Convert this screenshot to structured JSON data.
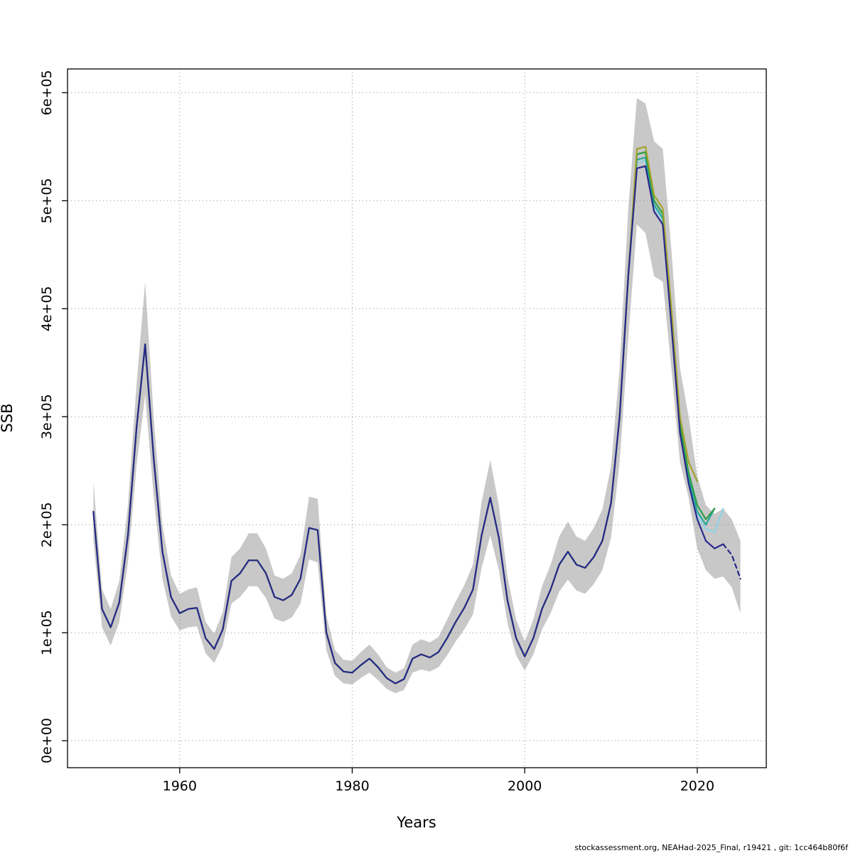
{
  "footer": {
    "source_note": "stockassessment.org, NEAHad-2025_Final, r19421 , git: 1cc464b80f6f"
  },
  "chart_data": {
    "type": "line",
    "title": "",
    "xlabel": "Years",
    "ylabel": "SSB",
    "xlim": [
      1947,
      2028
    ],
    "ylim": [
      -25000,
      622000
    ],
    "grid": true,
    "legend": "none",
    "x_ticks": [
      1960,
      1980,
      2000,
      2020
    ],
    "y_ticks": [
      0,
      100000,
      200000,
      300000,
      400000,
      500000,
      600000
    ],
    "y_tick_labels": [
      "0e+00",
      "1e+05",
      "2e+05",
      "3e+05",
      "4e+05",
      "5e+05",
      "6e+05"
    ],
    "colors": {
      "band": "#c8c8c8",
      "grid": "#8f8f8f",
      "frame": "#000000"
    },
    "shared_history": {
      "comment": "All assessment runs overlap for 1950-2012; annual SSB values",
      "start_year": 1950,
      "end_year": 2012,
      "values": [
        212000,
        122000,
        105000,
        128000,
        190000,
        290000,
        367000,
        260000,
        175000,
        133000,
        118000,
        122000,
        123000,
        95000,
        85000,
        103000,
        148000,
        155000,
        167000,
        167000,
        155000,
        133000,
        130000,
        135000,
        150000,
        197000,
        195000,
        100000,
        72000,
        64000,
        63000,
        70000,
        76000,
        68000,
        58000,
        53000,
        57000,
        76000,
        80000,
        77000,
        82000,
        95000,
        110000,
        123000,
        140000,
        190000,
        225000,
        188000,
        130000,
        95000,
        78000,
        95000,
        122000,
        140000,
        163000,
        175000,
        163000,
        160000,
        170000,
        185000,
        220000,
        300000,
        430000
      ]
    },
    "band": {
      "name": "confidence-band",
      "start_year": 1950,
      "lower": [
        185000,
        105000,
        88000,
        110000,
        165000,
        255000,
        320000,
        225000,
        150000,
        115000,
        102000,
        105000,
        106000,
        81000,
        72000,
        88000,
        127000,
        133000,
        143000,
        143000,
        132000,
        113000,
        110000,
        114000,
        127000,
        168000,
        165000,
        84000,
        60000,
        53000,
        52000,
        58000,
        63000,
        56000,
        48000,
        44000,
        47000,
        63000,
        66000,
        64000,
        68000,
        79000,
        92000,
        103000,
        117000,
        160000,
        190000,
        158000,
        109000,
        79000,
        65000,
        80000,
        103000,
        118000,
        138000,
        149000,
        139000,
        136000,
        145000,
        158000,
        188000,
        258000,
        372000,
        478000,
        470000,
        430000,
        425000,
        345000,
        258000,
        225000,
        178000,
        158000,
        150000,
        152000,
        142000,
        118000
      ],
      "upper": [
        240000,
        140000,
        122000,
        148000,
        218000,
        330000,
        425000,
        298000,
        200000,
        153000,
        136000,
        140000,
        142000,
        110000,
        99000,
        119000,
        170000,
        178000,
        192000,
        192000,
        178000,
        153000,
        150000,
        155000,
        172000,
        226000,
        224000,
        116000,
        84000,
        75000,
        74000,
        82000,
        89000,
        80000,
        68000,
        63000,
        67000,
        89000,
        94000,
        91000,
        96000,
        112000,
        129000,
        144000,
        163000,
        221000,
        260000,
        218000,
        152000,
        112000,
        92000,
        112000,
        143000,
        163000,
        189000,
        203000,
        189000,
        185000,
        197000,
        214000,
        254000,
        345000,
        492000,
        595000,
        590000,
        555000,
        548000,
        455000,
        345000,
        300000,
        245000,
        218000,
        210000,
        215000,
        205000,
        185000
      ]
    },
    "series": [
      {
        "name": "light-blue-run",
        "color": "#8fd3e8",
        "uses_shared_history": true,
        "tail_start_year": 2013,
        "dashed": false,
        "values": [
          535000,
          537000,
          494000,
          482000,
          388000,
          288000,
          240000,
          208000,
          196000,
          193000,
          215000
        ]
      },
      {
        "name": "teal-run",
        "color": "#26a69a",
        "uses_shared_history": true,
        "tail_start_year": 2013,
        "dashed": false,
        "values": [
          538000,
          540000,
          496000,
          484000,
          390000,
          290000,
          243000,
          212000,
          200000,
          215000
        ]
      },
      {
        "name": "green-run",
        "color": "#2f9e44",
        "uses_shared_history": true,
        "tail_start_year": 2013,
        "dashed": false,
        "values": [
          543000,
          545000,
          500000,
          488000,
          395000,
          293000,
          248000,
          218000,
          205000,
          215000
        ]
      },
      {
        "name": "olive-run",
        "color": "#a2a32a",
        "uses_shared_history": true,
        "tail_start_year": 2013,
        "dashed": false,
        "values": [
          548000,
          550000,
          505000,
          493000,
          400000,
          300000,
          258000,
          240000
        ]
      },
      {
        "name": "navy-run",
        "color": "#28288c",
        "uses_shared_history": true,
        "tail_start_year": 2013,
        "dashed": false,
        "values": [
          530000,
          532000,
          490000,
          478000,
          385000,
          285000,
          238000,
          205000,
          185000,
          178000,
          182000
        ]
      },
      {
        "name": "navy-forecast",
        "color": "#28288c",
        "uses_shared_history": false,
        "start_year": 2023,
        "dashed": true,
        "values": [
          182000,
          172000,
          150000
        ]
      }
    ]
  }
}
